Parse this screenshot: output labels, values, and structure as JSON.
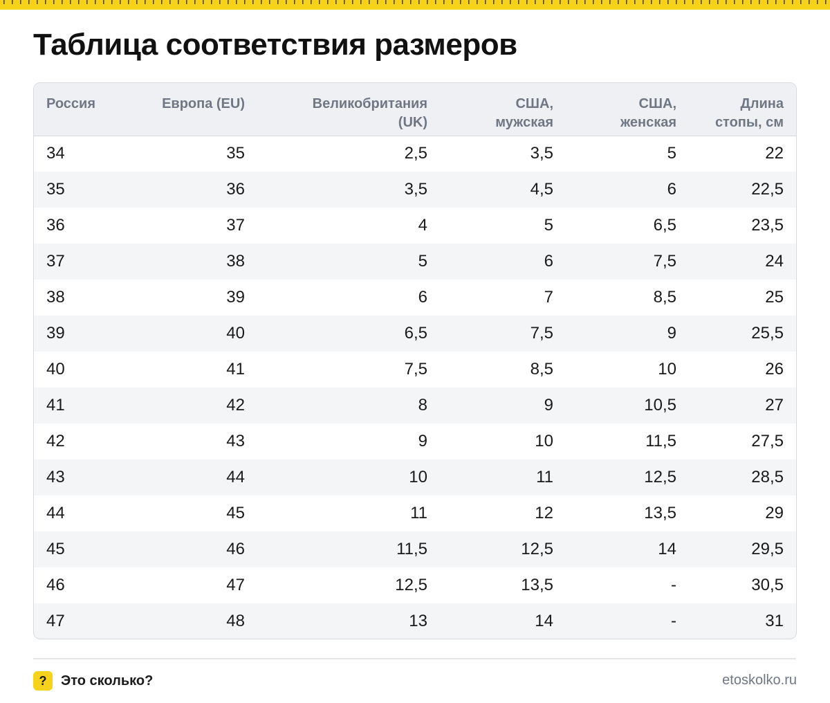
{
  "title": "Таблица соответствия размеров",
  "table": {
    "headers": [
      "Россия",
      "Европа (EU)",
      "Великобритания\n(UK)",
      "США,\nмужская",
      "США,\nженская",
      "Длина\nстопы, см"
    ],
    "rows": [
      [
        "34",
        "35",
        "2,5",
        "3,5",
        "5",
        "22"
      ],
      [
        "35",
        "36",
        "3,5",
        "4,5",
        "6",
        "22,5"
      ],
      [
        "36",
        "37",
        "4",
        "5",
        "6,5",
        "23,5"
      ],
      [
        "37",
        "38",
        "5",
        "6",
        "7,5",
        "24"
      ],
      [
        "38",
        "39",
        "6",
        "7",
        "8,5",
        "25"
      ],
      [
        "39",
        "40",
        "6,5",
        "7,5",
        "9",
        "25,5"
      ],
      [
        "40",
        "41",
        "7,5",
        "8,5",
        "10",
        "26"
      ],
      [
        "41",
        "42",
        "8",
        "9",
        "10,5",
        "27"
      ],
      [
        "42",
        "43",
        "9",
        "10",
        "11,5",
        "27,5"
      ],
      [
        "43",
        "44",
        "10",
        "11",
        "12,5",
        "28,5"
      ],
      [
        "44",
        "45",
        "11",
        "12",
        "13,5",
        "29"
      ],
      [
        "45",
        "46",
        "11,5",
        "12,5",
        "14",
        "29,5"
      ],
      [
        "46",
        "47",
        "12,5",
        "13,5",
        "-",
        "30,5"
      ],
      [
        "47",
        "48",
        "13",
        "14",
        "-",
        "31"
      ]
    ]
  },
  "footer": {
    "brand_icon": "?",
    "brand_name": "Это сколько?",
    "site": "etoskolko.ru"
  },
  "colors": {
    "accent": "#f7d21b",
    "header_bg": "#eef0f3",
    "header_text": "#707784",
    "stripe": "#f4f5f7",
    "border": "#d6d9de"
  }
}
